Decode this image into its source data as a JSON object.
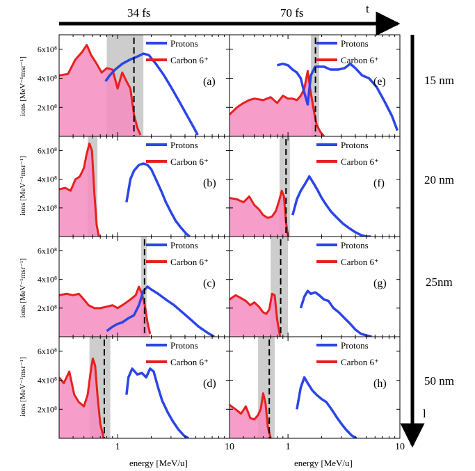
{
  "figure": {
    "time_axis_label": "t",
    "column_labels": [
      "34 fs",
      "70 fs"
    ],
    "thickness_axis_label": "l",
    "row_labels": [
      "15 nm",
      "20 nm",
      "25nm",
      "50 nm"
    ],
    "x_axis_label": "energy [MeV/u]",
    "y_axis_label": "ions [MeV⁻¹msr⁻¹]",
    "colors": {
      "protons": "#2b45e8",
      "carbon": "#e8201e",
      "carbon_fill": "#f48cc0",
      "band": "#c8c8c8",
      "cutoff": "#000000"
    }
  },
  "chart_data": [
    {
      "type": "line",
      "panel_label": "(a)",
      "row": 0,
      "col": 0,
      "xscale": "log",
      "xlim": [
        0.3,
        10
      ],
      "ylim": [
        0,
        700000000.0
      ],
      "x_ticks": [
        "1",
        "10"
      ],
      "y_ticks": [
        "2x10⁸",
        "4x10⁸",
        "6x10⁸"
      ],
      "band": [
        0.8,
        1.7
      ],
      "cutoff": 1.4,
      "series": [
        {
          "name": "Protons",
          "x": [
            0.78,
            0.85,
            0.95,
            1.1,
            1.3,
            1.5,
            1.7,
            1.9,
            2.2,
            2.6,
            3.0,
            3.5,
            4.2,
            4.8,
            5.2
          ],
          "y": [
            380000000.0,
            420000000.0,
            460000000.0,
            500000000.0,
            530000000.0,
            550000000.0,
            570000000.0,
            560000000.0,
            500000000.0,
            420000000.0,
            340000000.0,
            250000000.0,
            140000000.0,
            60000000.0,
            10000000.0
          ]
        },
        {
          "name": "Carbon 6⁺",
          "x": [
            0.3,
            0.36,
            0.42,
            0.48,
            0.53,
            0.58,
            0.65,
            0.72,
            0.8,
            0.9,
            1.0,
            1.1,
            1.2,
            1.3,
            1.4,
            1.5,
            1.6
          ],
          "y": [
            420000000.0,
            430000000.0,
            530000000.0,
            580000000.0,
            630000000.0,
            560000000.0,
            500000000.0,
            440000000.0,
            470000000.0,
            460000000.0,
            330000000.0,
            440000000.0,
            380000000.0,
            330000000.0,
            150000000.0,
            60000000.0,
            10000000.0
          ]
        }
      ]
    },
    {
      "type": "line",
      "panel_label": "(b)",
      "row": 1,
      "col": 0,
      "xscale": "log",
      "xlim": [
        0.3,
        10
      ],
      "ylim": [
        0,
        700000000.0
      ],
      "x_ticks": [
        "1",
        "10"
      ],
      "y_ticks": [
        "2x10⁸",
        "4x10⁸",
        "6x10⁸"
      ],
      "band": [
        0.54,
        0.66
      ],
      "cutoff": null,
      "series": [
        {
          "name": "Protons",
          "x": [
            1.2,
            1.25,
            1.3,
            1.4,
            1.55,
            1.7,
            1.85,
            2.0,
            2.2,
            2.45,
            2.7,
            3.0,
            3.3,
            3.7,
            4.1,
            4.4
          ],
          "y": [
            240000000.0,
            320000000.0,
            400000000.0,
            460000000.0,
            500000000.0,
            510000000.0,
            500000000.0,
            470000000.0,
            400000000.0,
            320000000.0,
            240000000.0,
            170000000.0,
            110000000.0,
            60000000.0,
            20000000.0,
            0.0
          ]
        },
        {
          "name": "Carbon 6⁺",
          "x": [
            0.3,
            0.34,
            0.38,
            0.42,
            0.46,
            0.5,
            0.53,
            0.56,
            0.59,
            0.62,
            0.65,
            0.68
          ],
          "y": [
            330000000.0,
            340000000.0,
            320000000.0,
            400000000.0,
            420000000.0,
            480000000.0,
            580000000.0,
            650000000.0,
            600000000.0,
            300000000.0,
            80000000.0,
            0.0
          ]
        }
      ]
    },
    {
      "type": "line",
      "panel_label": "(c)",
      "row": 2,
      "col": 0,
      "xscale": "log",
      "xlim": [
        0.3,
        10
      ],
      "ylim": [
        0,
        700000000.0
      ],
      "x_ticks": [
        "1",
        "10"
      ],
      "y_ticks": [
        "2x10⁸",
        "4x10⁸",
        "6x10⁸"
      ],
      "band": [
        1.62,
        1.82
      ],
      "cutoff": 1.74,
      "series": [
        {
          "name": "Protons",
          "x": [
            0.8,
            0.9,
            1.0,
            1.1,
            1.25,
            1.4,
            1.55,
            1.7,
            1.85,
            2.0,
            2.3,
            2.7,
            3.2,
            3.8,
            4.5,
            5.3,
            6.3,
            7.3
          ],
          "y": [
            40000000.0,
            70000000.0,
            90000000.0,
            100000000.0,
            130000000.0,
            150000000.0,
            220000000.0,
            320000000.0,
            350000000.0,
            330000000.0,
            300000000.0,
            260000000.0,
            220000000.0,
            170000000.0,
            120000000.0,
            70000000.0,
            30000000.0,
            0.0
          ]
        },
        {
          "name": "Carbon 6⁺",
          "x": [
            0.3,
            0.35,
            0.4,
            0.45,
            0.5,
            0.55,
            0.62,
            0.7,
            0.8,
            0.9,
            1.0,
            1.15,
            1.3,
            1.45,
            1.55,
            1.65,
            1.75,
            1.85,
            1.95
          ],
          "y": [
            290000000.0,
            300000000.0,
            290000000.0,
            300000000.0,
            260000000.0,
            220000000.0,
            200000000.0,
            200000000.0,
            210000000.0,
            220000000.0,
            200000000.0,
            230000000.0,
            260000000.0,
            290000000.0,
            350000000.0,
            300000000.0,
            220000000.0,
            100000000.0,
            20000000.0
          ]
        }
      ]
    },
    {
      "type": "line",
      "panel_label": "(d)",
      "row": 3,
      "col": 0,
      "xscale": "log",
      "xlim": [
        0.3,
        10
      ],
      "ylim": [
        0,
        700000000.0
      ],
      "x_ticks": [
        "1",
        "10"
      ],
      "y_ticks": [
        "2x10⁸",
        "4x10⁸",
        "6x10⁸"
      ],
      "band": [
        0.56,
        0.86
      ],
      "cutoff": 0.76,
      "series": [
        {
          "name": "Protons",
          "x": [
            1.2,
            1.25,
            1.35,
            1.5,
            1.65,
            1.8,
            1.95,
            2.1,
            2.3,
            2.5,
            2.8,
            3.1,
            3.5,
            3.9,
            4.3
          ],
          "y": [
            300000000.0,
            420000000.0,
            480000000.0,
            440000000.0,
            450000000.0,
            420000000.0,
            480000000.0,
            460000000.0,
            350000000.0,
            260000000.0,
            180000000.0,
            120000000.0,
            60000000.0,
            20000000.0,
            0.0
          ]
        },
        {
          "name": "Carbon 6⁺",
          "x": [
            0.3,
            0.33,
            0.37,
            0.41,
            0.45,
            0.5,
            0.54,
            0.57,
            0.6,
            0.63,
            0.66,
            0.7,
            0.75
          ],
          "y": [
            420000000.0,
            380000000.0,
            460000000.0,
            300000000.0,
            250000000.0,
            220000000.0,
            300000000.0,
            440000000.0,
            550000000.0,
            500000000.0,
            300000000.0,
            100000000.0,
            0.0
          ]
        }
      ]
    },
    {
      "type": "line",
      "panel_label": "(e)",
      "row": 0,
      "col": 1,
      "xscale": "log",
      "xlim": [
        0.3,
        10
      ],
      "ylim": [
        0,
        700000000.0
      ],
      "x_ticks": [
        "1",
        "10"
      ],
      "y_ticks": [],
      "band": [
        1.6,
        1.9
      ],
      "cutoff": 1.76,
      "series": [
        {
          "name": "Protons",
          "x": [
            0.8,
            0.9,
            1.0,
            1.1,
            1.2,
            1.3,
            1.4,
            1.5,
            1.6,
            1.75,
            1.9,
            2.1,
            2.4,
            2.8,
            3.2,
            3.6,
            4.0,
            4.6,
            5.3,
            6.2,
            7.3,
            8.5,
            9.5
          ],
          "y": [
            490000000.0,
            500000000.0,
            490000000.0,
            460000000.0,
            440000000.0,
            400000000.0,
            300000000.0,
            220000000.0,
            420000000.0,
            480000000.0,
            480000000.0,
            480000000.0,
            460000000.0,
            460000000.0,
            470000000.0,
            500000000.0,
            470000000.0,
            420000000.0,
            400000000.0,
            340000000.0,
            240000000.0,
            140000000.0,
            40000000.0
          ]
        },
        {
          "name": "Carbon 6⁺",
          "x": [
            0.3,
            0.35,
            0.4,
            0.45,
            0.5,
            0.6,
            0.7,
            0.8,
            0.9,
            1.0,
            1.1,
            1.2,
            1.3,
            1.4,
            1.5,
            1.6,
            1.7,
            1.8,
            1.95,
            2.1
          ],
          "y": [
            150000000.0,
            200000000.0,
            230000000.0,
            250000000.0,
            260000000.0,
            250000000.0,
            270000000.0,
            230000000.0,
            280000000.0,
            260000000.0,
            260000000.0,
            250000000.0,
            280000000.0,
            330000000.0,
            450000000.0,
            300000000.0,
            180000000.0,
            80000000.0,
            30000000.0,
            0.0
          ]
        }
      ]
    },
    {
      "type": "line",
      "panel_label": "(f)",
      "row": 1,
      "col": 1,
      "xscale": "log",
      "xlim": [
        0.3,
        10
      ],
      "ylim": [
        0,
        700000000.0
      ],
      "x_ticks": [
        "1",
        "10"
      ],
      "y_ticks": [],
      "band": [
        0.84,
        1.04
      ],
      "cutoff": 0.96,
      "series": [
        {
          "name": "Protons",
          "x": [
            1.1,
            1.2,
            1.3,
            1.4,
            1.55,
            1.7,
            1.85,
            2.0,
            2.2,
            2.45,
            2.75,
            3.1,
            3.5,
            4.0,
            4.5,
            5.0,
            5.5
          ],
          "y": [
            150000000.0,
            260000000.0,
            320000000.0,
            360000000.0,
            420000000.0,
            370000000.0,
            320000000.0,
            270000000.0,
            220000000.0,
            170000000.0,
            130000000.0,
            90000000.0,
            60000000.0,
            30000000.0,
            10000000.0,
            0.0,
            0.0
          ]
        },
        {
          "name": "Carbon 6⁺",
          "x": [
            0.3,
            0.35,
            0.4,
            0.45,
            0.5,
            0.55,
            0.6,
            0.66,
            0.72,
            0.78,
            0.84,
            0.88,
            0.92,
            0.96,
            1.0
          ],
          "y": [
            270000000.0,
            260000000.0,
            240000000.0,
            280000000.0,
            220000000.0,
            190000000.0,
            150000000.0,
            130000000.0,
            140000000.0,
            180000000.0,
            260000000.0,
            320000000.0,
            280000000.0,
            100000000.0,
            0.0
          ]
        }
      ]
    },
    {
      "type": "line",
      "panel_label": "(g)",
      "row": 2,
      "col": 1,
      "xscale": "log",
      "xlim": [
        0.3,
        10
      ],
      "ylim": [
        0,
        700000000.0
      ],
      "x_ticks": [
        "1",
        "10"
      ],
      "y_ticks": [],
      "band": [
        0.7,
        1.0
      ],
      "cutoff": 0.86,
      "series": [
        {
          "name": "Protons",
          "x": [
            1.3,
            1.4,
            1.5,
            1.6,
            1.75,
            1.9,
            2.1,
            2.3,
            2.55,
            2.85,
            3.2,
            3.6,
            4.0,
            4.5,
            5.0,
            5.6
          ],
          "y": [
            200000000.0,
            280000000.0,
            320000000.0,
            300000000.0,
            310000000.0,
            290000000.0,
            260000000.0,
            250000000.0,
            200000000.0,
            170000000.0,
            130000000.0,
            90000000.0,
            50000000.0,
            20000000.0,
            10000000.0,
            0.0
          ]
        },
        {
          "name": "Carbon 6⁺",
          "x": [
            0.3,
            0.34,
            0.38,
            0.42,
            0.46,
            0.5,
            0.55,
            0.6,
            0.64,
            0.68,
            0.72,
            0.76,
            0.8,
            0.85
          ],
          "y": [
            260000000.0,
            290000000.0,
            270000000.0,
            250000000.0,
            220000000.0,
            240000000.0,
            210000000.0,
            170000000.0,
            160000000.0,
            190000000.0,
            300000000.0,
            290000000.0,
            120000000.0,
            0.0
          ]
        }
      ]
    },
    {
      "type": "line",
      "panel_label": "(h)",
      "row": 3,
      "col": 1,
      "xscale": "log",
      "xlim": [
        0.3,
        10
      ],
      "ylim": [
        0,
        700000000.0
      ],
      "x_ticks": [
        "1",
        "10"
      ],
      "y_ticks": [],
      "band": [
        0.54,
        0.76
      ],
      "cutoff": 0.68,
      "series": [
        {
          "name": "Protons",
          "x": [
            1.2,
            1.3,
            1.4,
            1.5,
            1.65,
            1.8,
            2.0,
            2.2,
            2.45,
            2.7,
            3.0,
            3.3,
            3.7,
            4.1
          ],
          "y": [
            200000000.0,
            350000000.0,
            420000000.0,
            380000000.0,
            330000000.0,
            300000000.0,
            270000000.0,
            250000000.0,
            200000000.0,
            150000000.0,
            100000000.0,
            60000000.0,
            20000000.0,
            0.0
          ]
        },
        {
          "name": "Carbon 6⁺",
          "x": [
            0.3,
            0.34,
            0.38,
            0.42,
            0.46,
            0.5,
            0.54,
            0.57,
            0.6,
            0.63,
            0.66,
            0.7
          ],
          "y": [
            230000000.0,
            200000000.0,
            170000000.0,
            220000000.0,
            140000000.0,
            130000000.0,
            160000000.0,
            200000000.0,
            310000000.0,
            240000000.0,
            80000000.0,
            0.0
          ]
        }
      ]
    }
  ]
}
